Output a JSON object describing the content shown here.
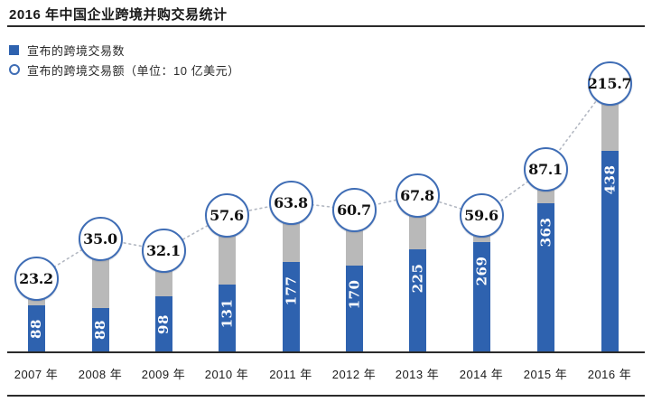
{
  "title": "2016 年中国企业跨境并购交易统计",
  "legend": [
    {
      "label": "宣布的跨境交易数",
      "marker": "square",
      "color": "#2e62af"
    },
    {
      "label": "宣布的跨境交易额（单位：10 亿美元）",
      "marker": "circle",
      "color": "#3f6db5"
    }
  ],
  "chart_data": {
    "type": "bar",
    "title": "2016 年中国企业跨境并购交易统计",
    "categories": [
      "2007 年",
      "2008 年",
      "2009 年",
      "2010 年",
      "2011 年",
      "2012 年",
      "2013 年",
      "2014 年",
      "2015 年",
      "2016 年"
    ],
    "series": [
      {
        "name": "宣布的跨境交易数",
        "type": "bar",
        "color": "#2e62af",
        "values": [
          88,
          88,
          98,
          131,
          177,
          170,
          225,
          269,
          363,
          438
        ],
        "value_labels": [
          "88",
          "88",
          "98",
          "131",
          "177",
          "170",
          "225",
          "269",
          "363",
          "438"
        ]
      },
      {
        "name": "宣布的跨境交易额（单位：10 亿美元）",
        "type": "circle-marker-line",
        "unit": "10 亿美元",
        "color": "#3f6db5",
        "values": [
          23.2,
          35.0,
          32.1,
          57.6,
          63.8,
          60.7,
          67.8,
          59.6,
          87.1,
          215.7
        ],
        "value_labels": [
          "23.2",
          "35.0",
          "32.1",
          "57.6",
          "63.8",
          "60.7",
          "67.8",
          "59.6",
          "87.1",
          "215.7"
        ]
      }
    ],
    "xlabel": "",
    "ylabel": "",
    "grid": false,
    "legend_position": "top-left",
    "connector_style": "dotted"
  },
  "colors": {
    "bar_blue": "#2e62af",
    "stem_gray": "#b9b9b9",
    "circle_border": "#3f6db5",
    "dotted_line": "#b3b8c2",
    "rule_dark": "#2b2b2b"
  }
}
